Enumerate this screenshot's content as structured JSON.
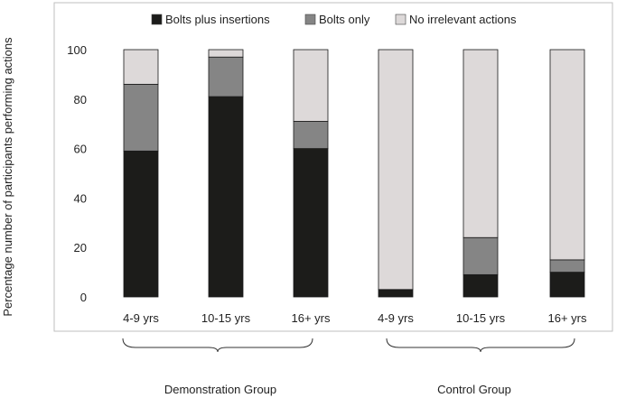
{
  "chart_data": {
    "type": "bar",
    "stacked": true,
    "ylabel": "Percentage number of participants performing actions",
    "ylim": [
      0,
      100
    ],
    "yticks": [
      0,
      20,
      40,
      60,
      80,
      100
    ],
    "grid": false,
    "legend_position": "top",
    "categories": [
      "4-9 yrs",
      "10-15 yrs",
      "16+ yrs",
      "4-9 yrs",
      "10-15 yrs",
      "16+ yrs"
    ],
    "groups": [
      {
        "label": "Demonstration Group",
        "categories": [
          0,
          1,
          2
        ]
      },
      {
        "label": "Control Group",
        "categories": [
          3,
          4,
          5
        ]
      }
    ],
    "series": [
      {
        "name": "Bolts plus insertions",
        "color": "#1c1c1a",
        "values": [
          59,
          81,
          60,
          3,
          9,
          10
        ]
      },
      {
        "name": "Bolts only",
        "color": "#858585",
        "values": [
          27,
          16,
          11,
          0,
          15,
          5
        ]
      },
      {
        "name": "No irrelevant actions",
        "color": "#ddd9d9",
        "values": [
          14,
          3,
          29,
          97,
          76,
          85
        ]
      }
    ]
  }
}
